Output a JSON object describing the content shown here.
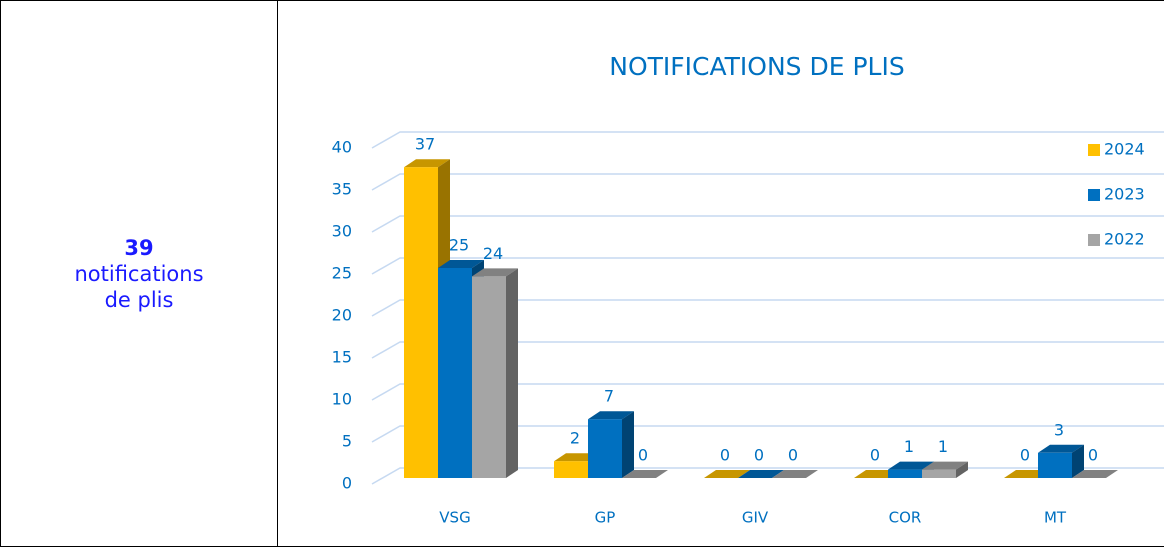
{
  "summary": {
    "count": "39",
    "text": "notifications de plis"
  },
  "chart_data": {
    "type": "bar3d",
    "title": "NOTIFICATIONS DE PLIS",
    "categories": [
      "VSG",
      "GP",
      "GIV",
      "COR",
      "MT"
    ],
    "series": [
      {
        "name": "2024",
        "color": "#ffc000",
        "values": [
          37,
          2,
          0,
          0,
          0
        ]
      },
      {
        "name": "2023",
        "color": "#0070c0",
        "values": [
          25,
          7,
          0,
          1,
          3
        ]
      },
      {
        "name": "2022",
        "color": "#a5a5a5",
        "values": [
          24,
          0,
          0,
          1,
          0
        ]
      }
    ],
    "ylim": [
      0,
      40
    ],
    "yticks": [
      0,
      5,
      10,
      15,
      20,
      25,
      30,
      35,
      40
    ],
    "grid": true,
    "legend": "top-right"
  }
}
